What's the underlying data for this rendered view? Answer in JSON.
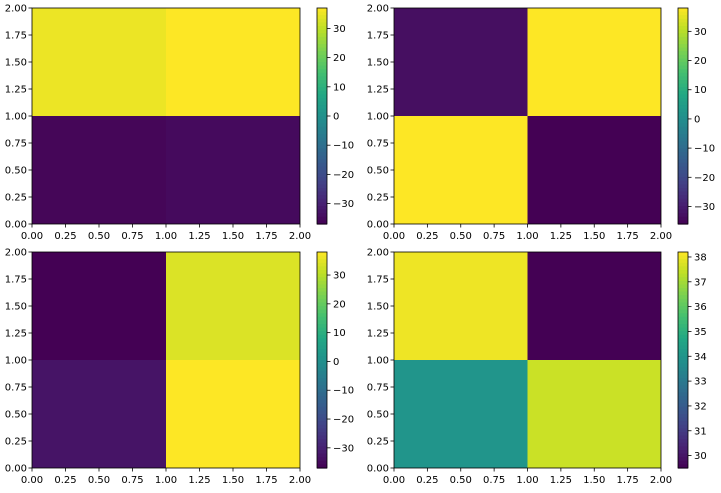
{
  "chart_data": [
    {
      "type": "heatmap",
      "title": "",
      "xlabel": "",
      "ylabel": "",
      "x_edges": [
        0,
        1,
        2
      ],
      "y_edges": [
        0,
        1,
        2
      ],
      "values": [
        [
          -36,
          -35
        ],
        [
          35,
          37
        ]
      ],
      "xlim": [
        0,
        2
      ],
      "ylim": [
        0,
        2
      ],
      "xticks": [
        "0.00",
        "0.25",
        "0.50",
        "0.75",
        "1.00",
        "1.25",
        "1.50",
        "1.75",
        "2.00"
      ],
      "yticks": [
        "0.00",
        "0.25",
        "0.50",
        "0.75",
        "1.00",
        "1.25",
        "1.50",
        "1.75",
        "2.00"
      ],
      "colormap": "viridis",
      "colorbar": {
        "min": -37,
        "max": 37,
        "ticks": [
          30,
          20,
          10,
          0,
          -10,
          -20,
          -30
        ],
        "tick_labels": [
          "30",
          "20",
          "10",
          "0",
          "−10",
          "−20",
          "−30"
        ]
      }
    },
    {
      "type": "heatmap",
      "title": "",
      "xlabel": "",
      "ylabel": "",
      "x_edges": [
        0,
        1,
        2
      ],
      "y_edges": [
        0,
        1,
        2
      ],
      "values": [
        [
          38,
          -36
        ],
        [
          -33,
          38
        ]
      ],
      "xlim": [
        0,
        2
      ],
      "ylim": [
        0,
        2
      ],
      "xticks": [
        "0.00",
        "0.25",
        "0.50",
        "0.75",
        "1.00",
        "1.25",
        "1.50",
        "1.75",
        "2.00"
      ],
      "yticks": [
        "0.00",
        "0.25",
        "0.50",
        "0.75",
        "1.00",
        "1.25",
        "1.50",
        "1.75",
        "2.00"
      ],
      "colormap": "viridis",
      "colorbar": {
        "min": -36,
        "max": 38,
        "ticks": [
          30,
          20,
          10,
          0,
          -10,
          -20,
          -30
        ],
        "tick_labels": [
          "30",
          "20",
          "10",
          "0",
          "−10",
          "−20",
          "−30"
        ]
      }
    },
    {
      "type": "heatmap",
      "title": "",
      "xlabel": "",
      "ylabel": "",
      "x_edges": [
        0,
        1,
        2
      ],
      "y_edges": [
        0,
        1,
        2
      ],
      "values": [
        [
          -33,
          38
        ],
        [
          -37,
          34
        ]
      ],
      "xlim": [
        0,
        2
      ],
      "ylim": [
        0,
        2
      ],
      "xticks": [
        "0.00",
        "0.25",
        "0.50",
        "0.75",
        "1.00",
        "1.25",
        "1.50",
        "1.75",
        "2.00"
      ],
      "yticks": [
        "0.00",
        "0.25",
        "0.50",
        "0.75",
        "1.00",
        "1.25",
        "1.50",
        "1.75",
        "2.00"
      ],
      "colormap": "viridis",
      "colorbar": {
        "min": -37,
        "max": 38,
        "ticks": [
          30,
          20,
          10,
          0,
          -10,
          -20,
          -30
        ],
        "tick_labels": [
          "30",
          "20",
          "10",
          "0",
          "−10",
          "−20",
          "−30"
        ]
      }
    },
    {
      "type": "heatmap",
      "title": "",
      "xlabel": "",
      "ylabel": "",
      "x_edges": [
        0,
        1,
        2
      ],
      "y_edges": [
        0,
        1,
        2
      ],
      "values": [
        [
          34,
          37.5
        ],
        [
          38,
          29.5
        ]
      ],
      "xlim": [
        0,
        2
      ],
      "ylim": [
        0,
        2
      ],
      "xticks": [
        "0.00",
        "0.25",
        "0.50",
        "0.75",
        "1.00",
        "1.25",
        "1.50",
        "1.75",
        "2.00"
      ],
      "yticks": [
        "0.00",
        "0.25",
        "0.50",
        "0.75",
        "1.00",
        "1.25",
        "1.50",
        "1.75",
        "2.00"
      ],
      "colormap": "viridis",
      "colorbar": {
        "min": 29.5,
        "max": 38.2,
        "ticks": [
          38,
          37,
          36,
          35,
          34,
          33,
          32,
          31,
          30
        ],
        "tick_labels": [
          "38",
          "37",
          "36",
          "35",
          "34",
          "33",
          "32",
          "31",
          "30"
        ]
      }
    }
  ]
}
